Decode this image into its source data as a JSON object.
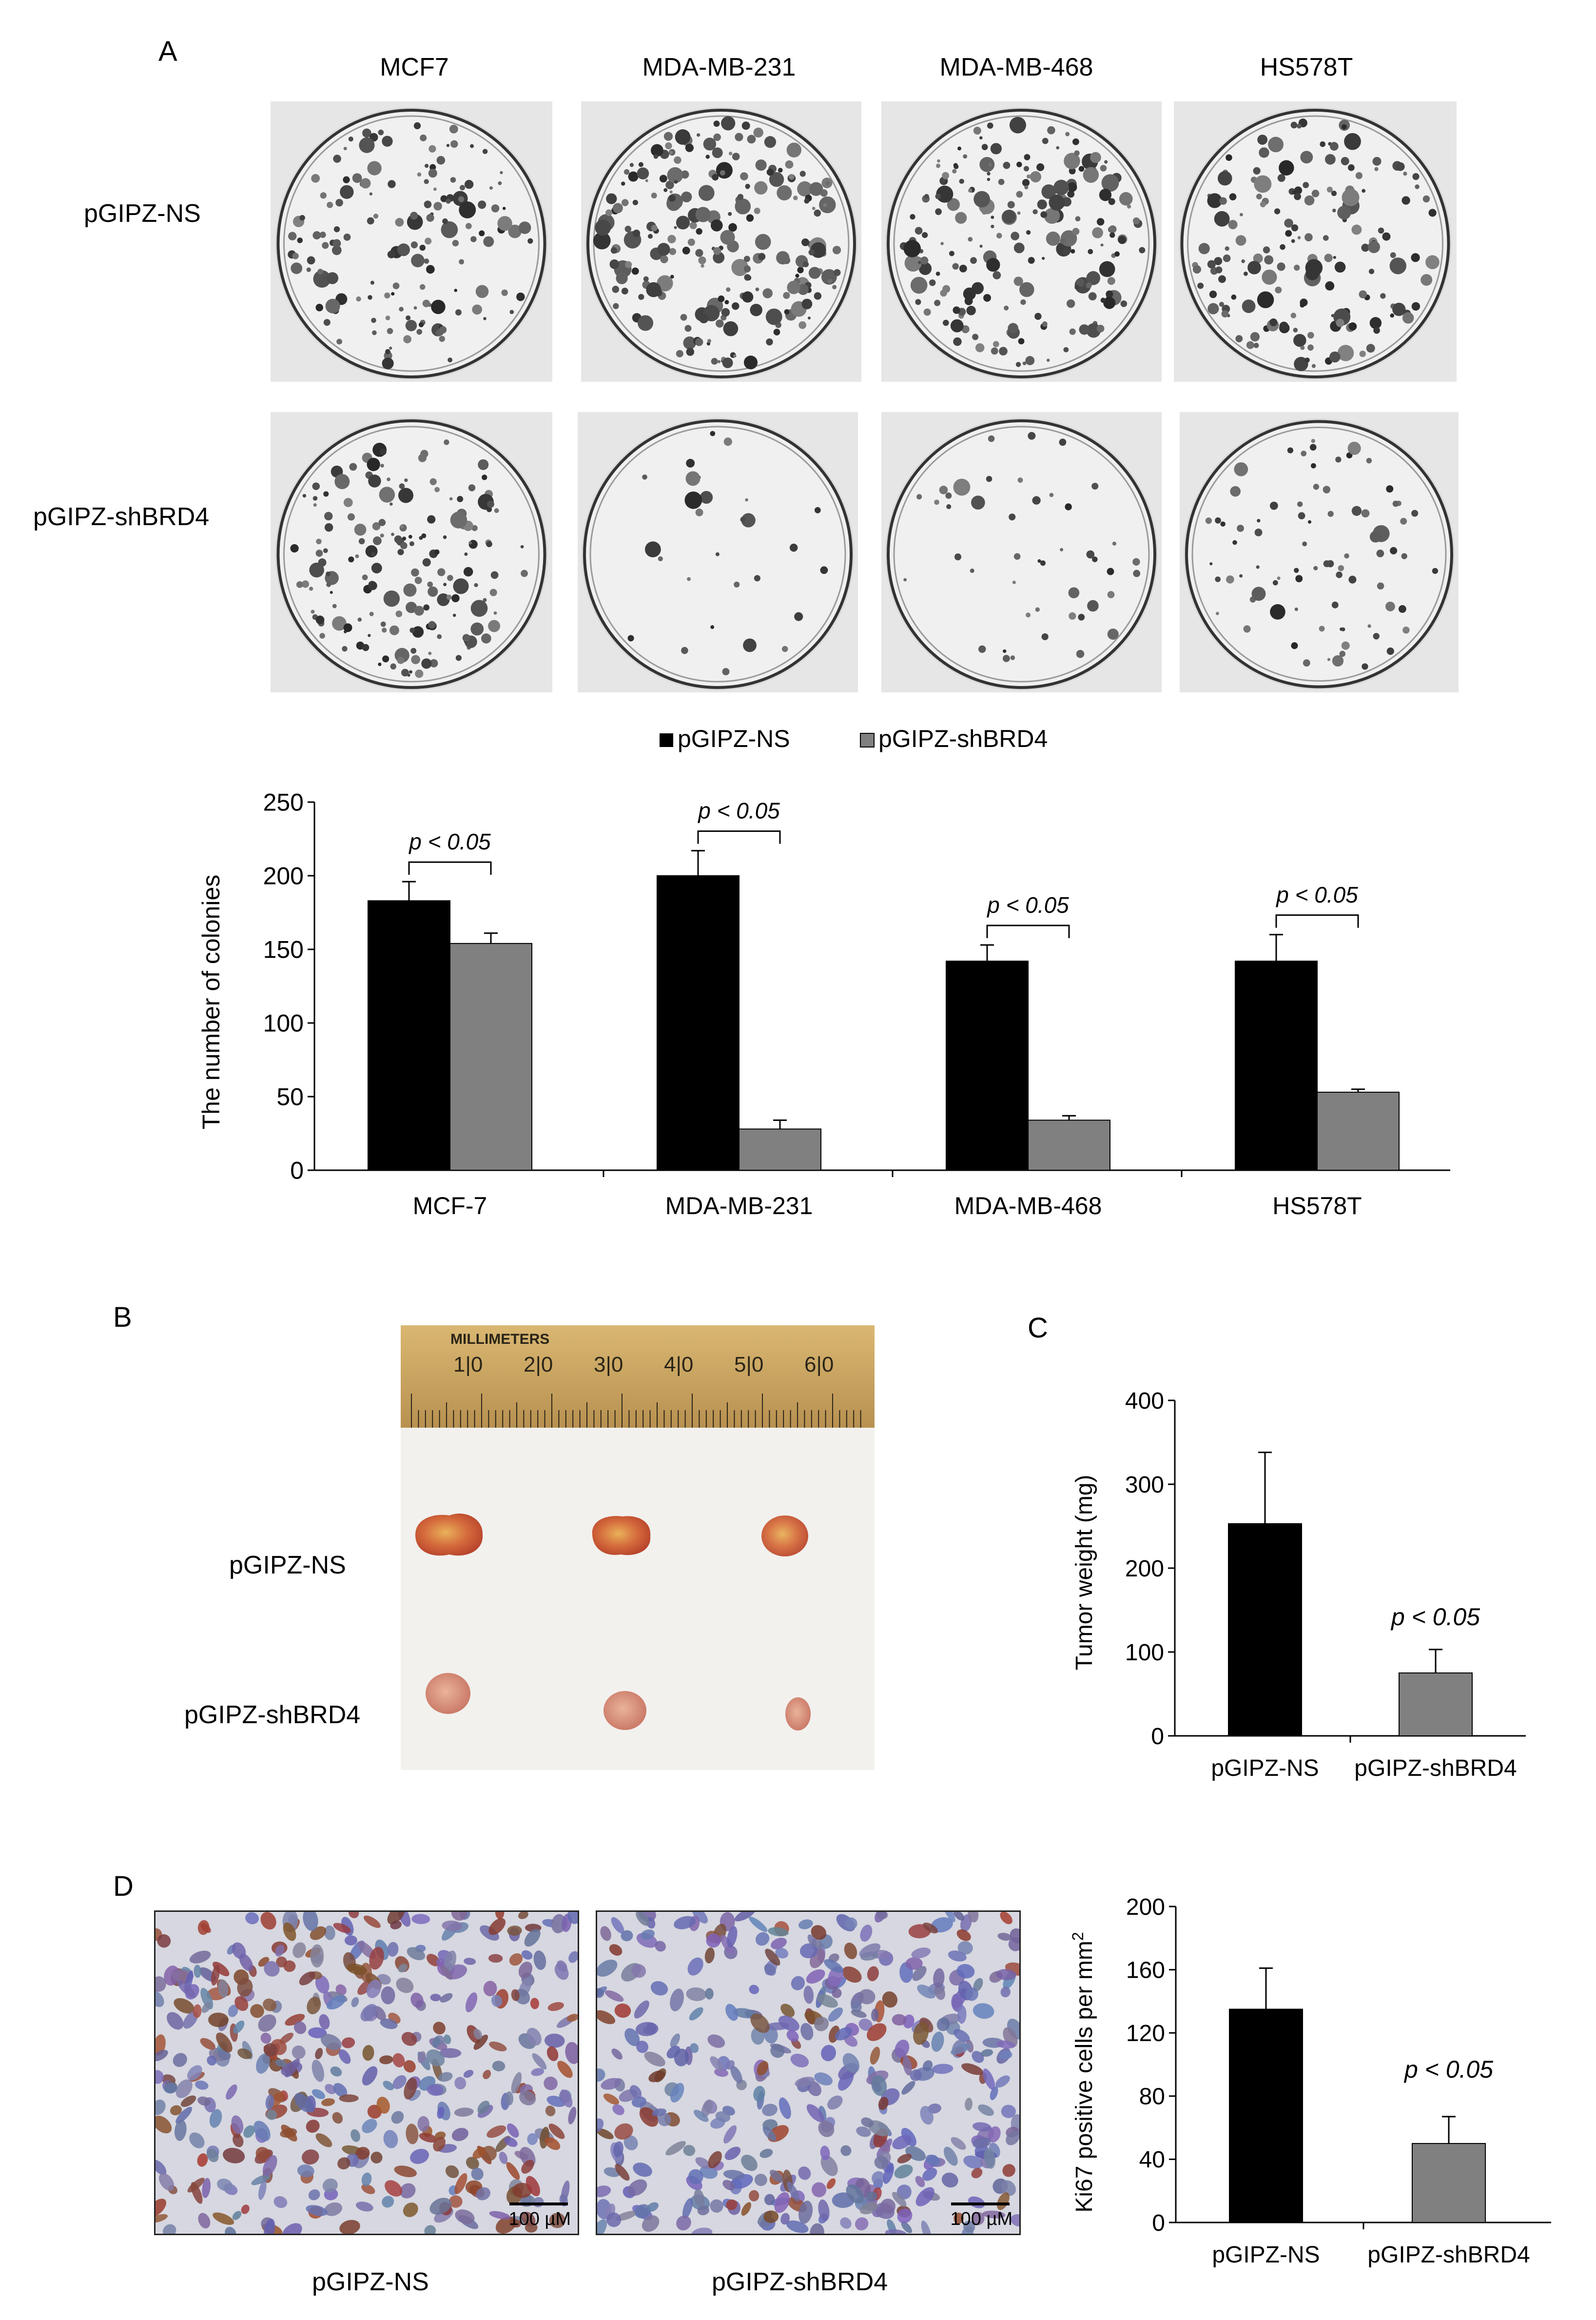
{
  "panel_labels": {
    "a": "A",
    "b": "B",
    "c": "C",
    "d": "D"
  },
  "panelA": {
    "cell_lines_top": [
      "MCF7",
      "MDA-MB-231",
      "MDA-MB-468",
      "HS578T"
    ],
    "row_labels": [
      "pGIPZ-NS",
      "pGIPZ-shBRD4"
    ]
  },
  "panelB": {
    "ruler_title": "MILLIMETERS",
    "ruler_numbers": [
      "1|0",
      "2|0",
      "3|0",
      "4|0",
      "5|0",
      "6|0"
    ],
    "row_labels": [
      "pGIPZ-NS",
      "pGIPZ-shBRD4"
    ]
  },
  "panelD": {
    "image_labels": [
      "pGIPZ-NS",
      "pGIPZ-shBRD4"
    ],
    "scale_bar_label": "100 µM"
  },
  "colors": {
    "ns": "#000000",
    "sh": "#808080"
  },
  "chart_data": [
    {
      "id": "A",
      "type": "bar",
      "categories": [
        "MCF-7",
        "MDA-MB-231",
        "MDA-MB-468",
        "HS578T"
      ],
      "series": [
        {
          "name": "pGIPZ-NS",
          "values": [
            183,
            200,
            142,
            142
          ],
          "errors": [
            13,
            17,
            11,
            18
          ]
        },
        {
          "name": "pGIPZ-shBRD4",
          "values": [
            154,
            28,
            34,
            53
          ],
          "errors": [
            7,
            6,
            3,
            2
          ]
        }
      ],
      "ylabel": "The number of colonies",
      "ylim": [
        0,
        250
      ],
      "yticks": [
        "0",
        "50",
        "100",
        "150",
        "200",
        "250"
      ],
      "annotations": [
        "p < 0.05",
        "p < 0.05",
        "p < 0.05",
        "p < 0.05"
      ],
      "legend": "top"
    },
    {
      "id": "C",
      "type": "bar",
      "categories": [
        "pGIPZ-NS",
        "pGIPZ-shBRD4"
      ],
      "values": [
        253,
        75
      ],
      "errors": [
        85,
        28
      ],
      "ylabel": "Tumor weight (mg)",
      "ylim": [
        0,
        400
      ],
      "yticks": [
        "0",
        "100",
        "200",
        "300",
        "400"
      ],
      "annotation": "p < 0.05"
    },
    {
      "id": "D",
      "type": "bar",
      "categories": [
        "pGIPZ-NS",
        "pGIPZ-shBRD4"
      ],
      "values": [
        135,
        50
      ],
      "errors": [
        26,
        17
      ],
      "ylabel": "Ki67 positive cells per mm",
      "ylabel_sup": "2",
      "ylim": [
        0,
        200
      ],
      "yticks": [
        "0",
        "40",
        "80",
        "120",
        "160",
        "200"
      ],
      "annotation": "p < 0.05"
    }
  ]
}
